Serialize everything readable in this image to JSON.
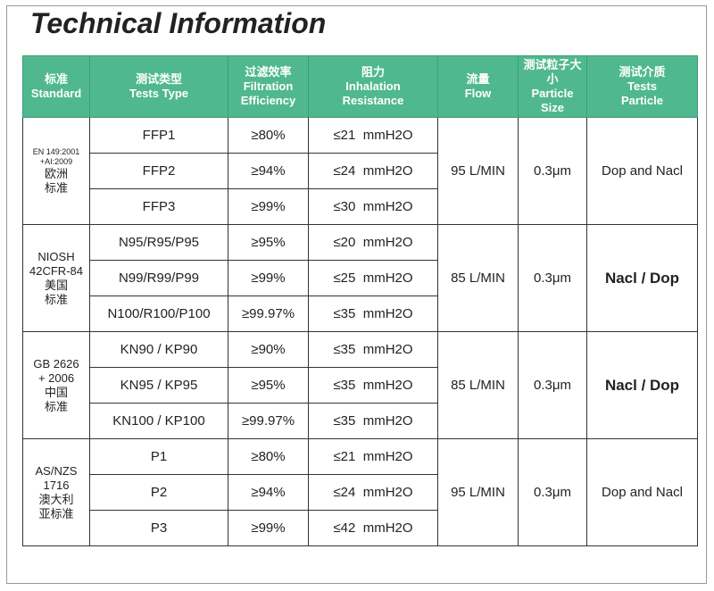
{
  "title": "Technical Information",
  "header": [
    [
      "标准",
      "Standard"
    ],
    [
      "测试类型",
      "Tests  Type"
    ],
    [
      "过滤效率",
      "Filtration",
      "Efficiency"
    ],
    [
      "阻力",
      "Inhalation",
      "Resistance"
    ],
    [
      "流量",
      "Flow"
    ],
    [
      "测试粒子大小",
      "Particle",
      "Size"
    ],
    [
      "测试介质",
      "Tests",
      "Particle"
    ]
  ],
  "groups": [
    {
      "standard": [
        "EN 149:2001",
        "+AI:2009",
        "欧洲",
        "标准"
      ],
      "rows": [
        [
          "FFP1",
          "≥80%",
          "≤21  mmH2O"
        ],
        [
          "FFP2",
          "≥94%",
          "≤24  mmH2O"
        ],
        [
          "FFP3",
          "≥99%",
          "≤30  mmH2O"
        ]
      ],
      "flow": "95 L/MIN",
      "size": "0.3μm",
      "particle": "Dop and Nacl"
    },
    {
      "standard": [
        "NIOSH",
        "42CFR-84",
        "美国",
        "标准"
      ],
      "rows": [
        [
          "N95/R95/P95",
          "≥95%",
          "≤20  mmH2O"
        ],
        [
          "N99/R99/P99",
          "≥99%",
          "≤25  mmH2O"
        ],
        [
          "N100/R100/P100",
          "≥99.97%",
          "≤35  mmH2O"
        ]
      ],
      "flow": "85 L/MIN",
      "size": "0.3μm",
      "particle": "Nacl / Dop"
    },
    {
      "standard": [
        "GB 2626",
        "+ 2006",
        "中国",
        "标准"
      ],
      "rows": [
        [
          "KN90 / KP90",
          "≥90%",
          "≤35  mmH2O"
        ],
        [
          "KN95 / KP95",
          "≥95%",
          "≤35  mmH2O"
        ],
        [
          "KN100 / KP100",
          "≥99.97%",
          "≤35  mmH2O"
        ]
      ],
      "flow": "85 L/MIN",
      "size": "0.3μm",
      "particle": "Nacl / Dop"
    },
    {
      "standard": [
        "AS/NZS",
        "1716",
        "澳大利",
        "亚标准"
      ],
      "rows": [
        [
          "P1",
          "≥80%",
          "≤21  mmH2O"
        ],
        [
          "P2",
          "≥94%",
          "≤24  mmH2O"
        ],
        [
          "P3",
          "≥99%",
          "≤42  mmH2O"
        ]
      ],
      "flow": "95 L/MIN",
      "size": "0.3μm",
      "particle": "Dop and Nacl"
    }
  ]
}
